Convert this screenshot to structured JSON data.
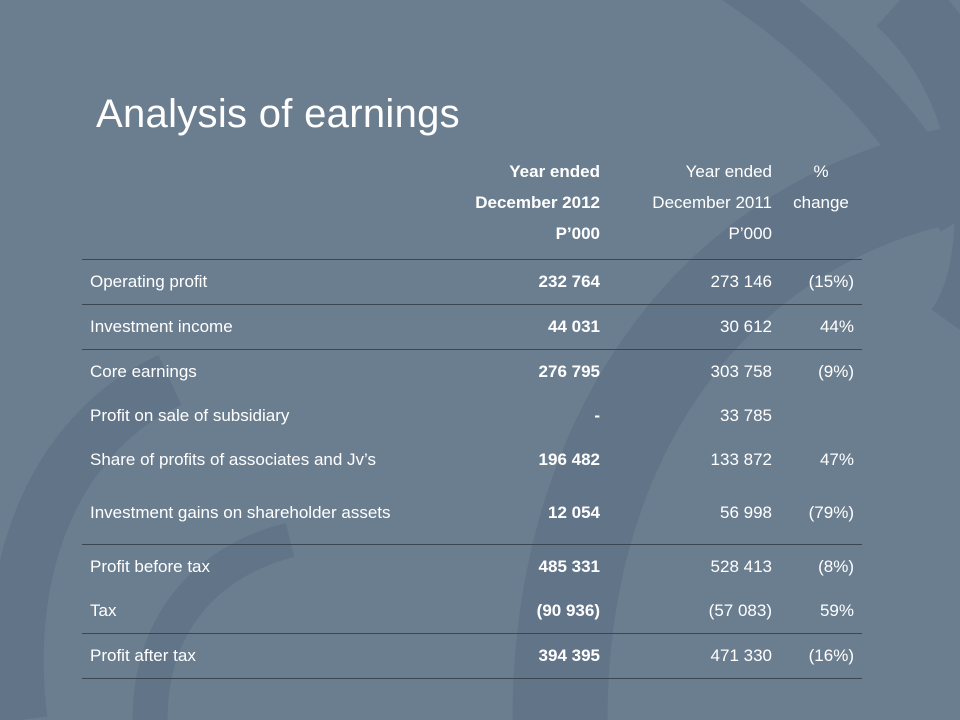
{
  "title": "Analysis of earnings",
  "headers": {
    "label": "",
    "year2012": [
      "Year ended",
      "December 2012",
      "P’000"
    ],
    "year2011": [
      "Year ended",
      "December 2011",
      "P’000"
    ],
    "change": [
      "%",
      "change"
    ]
  },
  "rows": [
    {
      "label": "Operating profit",
      "v2012": "232 764",
      "v2011": "273 146",
      "change": "(15%)"
    },
    {
      "label": "Investment income",
      "v2012": "44 031",
      "v2011": "30 612",
      "change": "44%"
    },
    {
      "label": "Core earnings",
      "v2012": "276 795",
      "v2011": "303 758",
      "change": "(9%)"
    },
    {
      "label": "Profit on sale of subsidiary",
      "v2012": "-",
      "v2011": "33 785",
      "change": ""
    },
    {
      "label": "Share of profits of associates and Jv’s",
      "v2012": "196 482",
      "v2011": "133 872",
      "change": "47%"
    },
    {
      "label": "Investment gains on shareholder assets",
      "v2012": "12 054",
      "v2011": "56 998",
      "change": "(79%)"
    },
    {
      "label": "Profit before tax",
      "v2012": "485 331",
      "v2011": "528 413",
      "change": "(8%)"
    },
    {
      "label": "Tax",
      "v2012": "(90 936)",
      "v2011": "(57 083)",
      "change": "59%"
    },
    {
      "label": "Profit after tax",
      "v2012": "394 395",
      "v2011": "471 330",
      "change": "(16%)"
    }
  ],
  "colors": {
    "background": "#6b7e90",
    "rule": "#3b4651",
    "text": "#ffffff",
    "swirl": "#627588"
  }
}
